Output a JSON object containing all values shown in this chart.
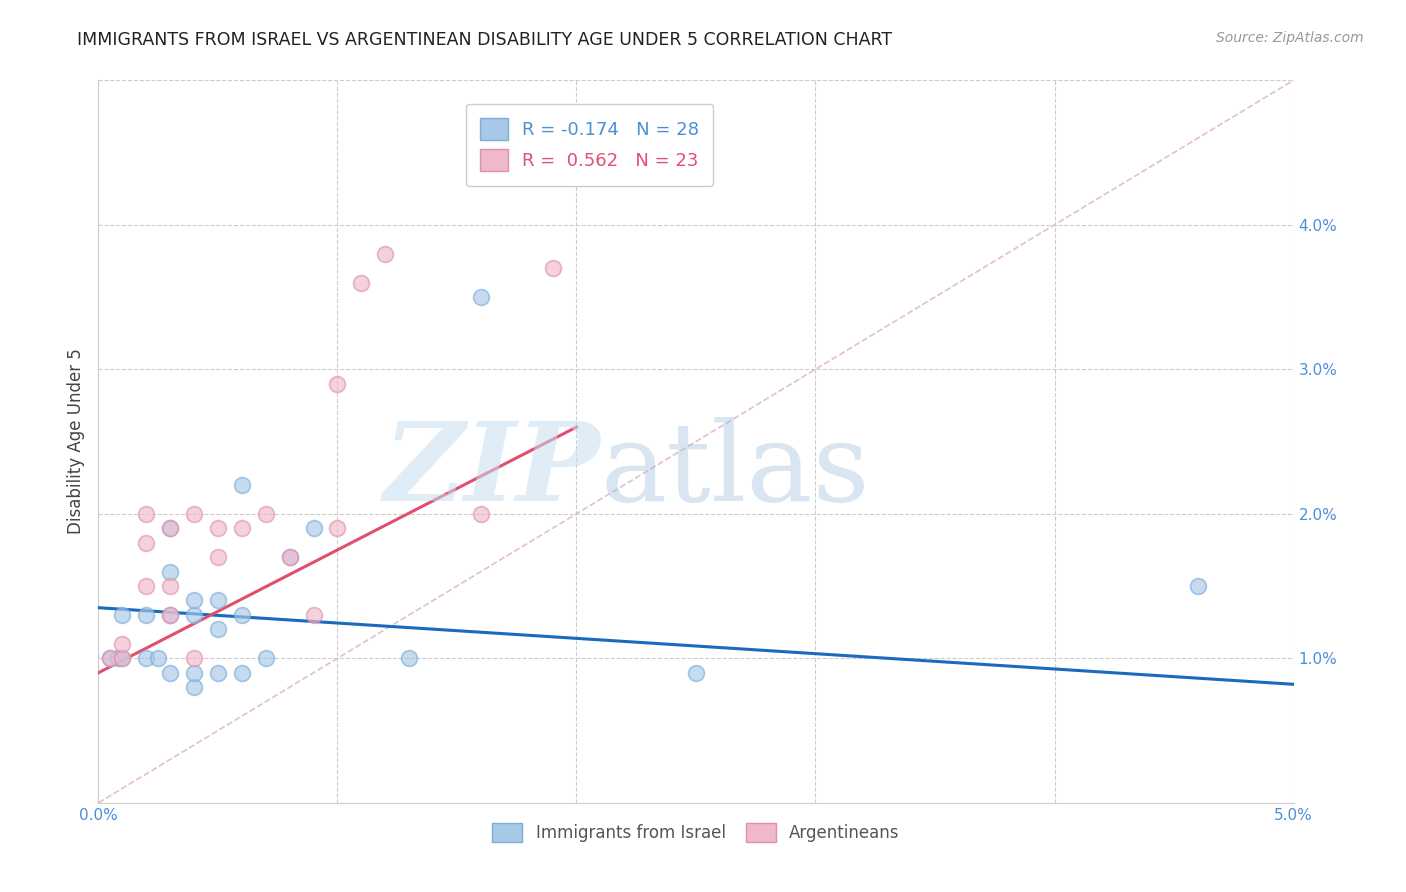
{
  "title": "IMMIGRANTS FROM ISRAEL VS ARGENTINEAN DISABILITY AGE UNDER 5 CORRELATION CHART",
  "source": "Source: ZipAtlas.com",
  "ylabel": "Disability Age Under 5",
  "xlim": [
    0.0,
    0.05
  ],
  "ylim": [
    0.0,
    0.05
  ],
  "xticks": [
    0.0,
    0.01,
    0.02,
    0.03,
    0.04,
    0.05
  ],
  "yticks": [
    0.0,
    0.01,
    0.02,
    0.03,
    0.04,
    0.05
  ],
  "xticklabels": [
    "0.0%",
    "",
    "",
    "",
    "",
    "5.0%"
  ],
  "right_yticklabels": [
    "",
    "1.0%",
    "2.0%",
    "3.0%",
    "4.0%",
    ""
  ],
  "legend1_label": "R = -0.174   N = 28",
  "legend2_label": "R =  0.562   N = 23",
  "legend1_color": "#a8c8e8",
  "legend2_color": "#f0b8cc",
  "blue_line_color": "#1a6abf",
  "pink_line_color": "#e0506e",
  "dashed_line_color": "#dbb0be",
  "blue_scatter_color": "#a8c8e8",
  "pink_scatter_color": "#f0b8cc",
  "scatter_edgecolor_blue": "#7aadd8",
  "scatter_edgecolor_pink": "#e090a8",
  "blue_x": [
    0.0005,
    0.0008,
    0.001,
    0.001,
    0.002,
    0.002,
    0.0025,
    0.003,
    0.003,
    0.003,
    0.003,
    0.004,
    0.004,
    0.004,
    0.004,
    0.005,
    0.005,
    0.005,
    0.006,
    0.006,
    0.006,
    0.007,
    0.008,
    0.009,
    0.013,
    0.016,
    0.025,
    0.046
  ],
  "blue_y": [
    0.01,
    0.01,
    0.01,
    0.013,
    0.01,
    0.013,
    0.01,
    0.009,
    0.013,
    0.016,
    0.019,
    0.008,
    0.009,
    0.013,
    0.014,
    0.009,
    0.012,
    0.014,
    0.009,
    0.013,
    0.022,
    0.01,
    0.017,
    0.019,
    0.01,
    0.035,
    0.009,
    0.015
  ],
  "pink_x": [
    0.0005,
    0.001,
    0.001,
    0.002,
    0.002,
    0.002,
    0.003,
    0.003,
    0.003,
    0.004,
    0.004,
    0.005,
    0.005,
    0.006,
    0.007,
    0.008,
    0.009,
    0.01,
    0.01,
    0.011,
    0.012,
    0.016,
    0.019
  ],
  "pink_y": [
    0.01,
    0.01,
    0.011,
    0.015,
    0.018,
    0.02,
    0.013,
    0.015,
    0.019,
    0.01,
    0.02,
    0.017,
    0.019,
    0.019,
    0.02,
    0.017,
    0.013,
    0.019,
    0.029,
    0.036,
    0.038,
    0.02,
    0.037
  ],
  "blue_line_x": [
    0.0,
    0.05
  ],
  "blue_line_y": [
    0.0135,
    0.0082
  ],
  "pink_line_x": [
    0.0,
    0.02
  ],
  "pink_line_y": [
    0.009,
    0.026
  ],
  "dashed_line_x": [
    0.0,
    0.05
  ],
  "dashed_line_y": [
    0.0,
    0.05
  ],
  "scatter_size": 130,
  "scatter_alpha": 0.65,
  "scatter_linewidth": 1.2
}
